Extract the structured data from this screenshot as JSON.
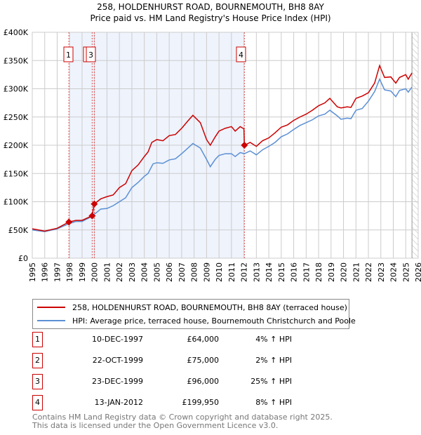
{
  "chart_data": {
    "type": "line",
    "title": "258, HOLDENHURST ROAD, BOURNEMOUTH, BH8 8AY",
    "subtitle": "Price paid vs. HM Land Registry's House Price Index (HPI)",
    "xlim": [
      1995,
      2026
    ],
    "ylim": [
      0,
      400000
    ],
    "yticks": [
      0,
      50000,
      100000,
      150000,
      200000,
      250000,
      300000,
      350000,
      400000
    ],
    "ytick_labels": [
      "£0",
      "£50K",
      "£100K",
      "£150K",
      "£200K",
      "£250K",
      "£300K",
      "£350K",
      "£400K"
    ],
    "xticks": [
      1995,
      1996,
      1997,
      1998,
      1999,
      2000,
      2001,
      2002,
      2003,
      2004,
      2005,
      2006,
      2007,
      2008,
      2009,
      2010,
      2011,
      2012,
      2013,
      2014,
      2015,
      2016,
      2017,
      2018,
      2019,
      2020,
      2021,
      2022,
      2023,
      2024,
      2025,
      2026
    ],
    "grid": true,
    "colors": {
      "property": "#cc0000",
      "hpi": "#5b8fd4",
      "shade": "#eef3fc"
    },
    "series": [
      {
        "name": "258, HOLDENHURST ROAD, BOURNEMOUTH, BH8 8AY (terraced house)",
        "points": [
          [
            1995,
            52000
          ],
          [
            1996,
            48000
          ],
          [
            1997,
            53000
          ],
          [
            1997.94,
            64000
          ],
          [
            1998.5,
            67000
          ],
          [
            1999,
            67000
          ],
          [
            1999.8,
            75000
          ],
          [
            1999.98,
            96000
          ],
          [
            2000.5,
            105000
          ],
          [
            2001,
            109000
          ],
          [
            2001.5,
            112000
          ],
          [
            2002,
            125000
          ],
          [
            2002.5,
            132000
          ],
          [
            2003,
            155000
          ],
          [
            2003.5,
            165000
          ],
          [
            2004,
            180000
          ],
          [
            2004.3,
            188000
          ],
          [
            2004.6,
            205000
          ],
          [
            2005,
            210000
          ],
          [
            2005.5,
            208000
          ],
          [
            2006,
            217000
          ],
          [
            2006.5,
            219000
          ],
          [
            2007,
            230000
          ],
          [
            2007.5,
            243000
          ],
          [
            2007.9,
            253000
          ],
          [
            2008.5,
            240000
          ],
          [
            2009,
            210000
          ],
          [
            2009.3,
            200000
          ],
          [
            2009.7,
            215000
          ],
          [
            2010,
            225000
          ],
          [
            2010.5,
            230000
          ],
          [
            2011,
            233000
          ],
          [
            2011.3,
            225000
          ],
          [
            2011.7,
            233000
          ],
          [
            2012.0,
            229000
          ],
          [
            2012.04,
            199950
          ],
          [
            2012.5,
            205000
          ],
          [
            2013,
            198000
          ],
          [
            2013.5,
            208000
          ],
          [
            2014,
            213000
          ],
          [
            2014.5,
            222000
          ],
          [
            2015,
            232000
          ],
          [
            2015.5,
            236000
          ],
          [
            2016,
            244000
          ],
          [
            2016.5,
            250000
          ],
          [
            2017,
            255000
          ],
          [
            2017.5,
            262000
          ],
          [
            2018,
            270000
          ],
          [
            2018.5,
            275000
          ],
          [
            2018.9,
            283000
          ],
          [
            2019.5,
            268000
          ],
          [
            2019.8,
            266000
          ],
          [
            2020.3,
            268000
          ],
          [
            2020.6,
            267000
          ],
          [
            2021,
            283000
          ],
          [
            2021.5,
            287000
          ],
          [
            2022,
            293000
          ],
          [
            2022.5,
            310000
          ],
          [
            2022.9,
            341000
          ],
          [
            2023.3,
            320000
          ],
          [
            2023.8,
            321000
          ],
          [
            2024.2,
            310000
          ],
          [
            2024.5,
            320000
          ],
          [
            2025,
            325000
          ],
          [
            2025.2,
            317000
          ],
          [
            2025.5,
            328000
          ]
        ]
      },
      {
        "name": "HPI: Average price, terraced house, Bournemouth Christchurch and Poole",
        "points": [
          [
            1995,
            50000
          ],
          [
            1996,
            47000
          ],
          [
            1997,
            52000
          ],
          [
            1997.94,
            61000
          ],
          [
            1998.5,
            65000
          ],
          [
            1999,
            65000
          ],
          [
            1999.8,
            74000
          ],
          [
            2000,
            78000
          ],
          [
            2000.5,
            87000
          ],
          [
            2001,
            88000
          ],
          [
            2001.5,
            93000
          ],
          [
            2002,
            100000
          ],
          [
            2002.5,
            107000
          ],
          [
            2003,
            125000
          ],
          [
            2003.5,
            134000
          ],
          [
            2004,
            145000
          ],
          [
            2004.3,
            150000
          ],
          [
            2004.7,
            167000
          ],
          [
            2005,
            169000
          ],
          [
            2005.5,
            168000
          ],
          [
            2006,
            174000
          ],
          [
            2006.5,
            176000
          ],
          [
            2007,
            185000
          ],
          [
            2007.5,
            195000
          ],
          [
            2007.9,
            203000
          ],
          [
            2008.5,
            195000
          ],
          [
            2009,
            175000
          ],
          [
            2009.3,
            162000
          ],
          [
            2009.7,
            175000
          ],
          [
            2010,
            182000
          ],
          [
            2010.5,
            185000
          ],
          [
            2011,
            185000
          ],
          [
            2011.3,
            180000
          ],
          [
            2011.7,
            187000
          ],
          [
            2012.04,
            185000
          ],
          [
            2012.5,
            190000
          ],
          [
            2013,
            183000
          ],
          [
            2013.5,
            192000
          ],
          [
            2014,
            198000
          ],
          [
            2014.5,
            205000
          ],
          [
            2015,
            215000
          ],
          [
            2015.5,
            220000
          ],
          [
            2016,
            228000
          ],
          [
            2016.5,
            235000
          ],
          [
            2017,
            240000
          ],
          [
            2017.5,
            245000
          ],
          [
            2018,
            252000
          ],
          [
            2018.5,
            255000
          ],
          [
            2018.9,
            262000
          ],
          [
            2019.5,
            252000
          ],
          [
            2019.8,
            246000
          ],
          [
            2020.3,
            248000
          ],
          [
            2020.6,
            247000
          ],
          [
            2021,
            262000
          ],
          [
            2021.5,
            265000
          ],
          [
            2022,
            278000
          ],
          [
            2022.5,
            295000
          ],
          [
            2022.9,
            317000
          ],
          [
            2023.3,
            298000
          ],
          [
            2023.8,
            296000
          ],
          [
            2024.2,
            286000
          ],
          [
            2024.5,
            297000
          ],
          [
            2025,
            300000
          ],
          [
            2025.2,
            294000
          ],
          [
            2025.5,
            303000
          ]
        ]
      }
    ],
    "sales": [
      {
        "id": "1",
        "x": 1997.94,
        "price": 64000,
        "date": "10-DEC-1997",
        "price_label": "£64,000",
        "hpi": "4% ↑ HPI"
      },
      {
        "id": "2",
        "x": 1999.81,
        "price": 75000,
        "date": "22-OCT-1999",
        "price_label": "£75,000",
        "hpi": "2% ↑ HPI"
      },
      {
        "id": "3",
        "x": 1999.98,
        "price": 96000,
        "date": "23-DEC-1999",
        "price_label": "£96,000",
        "hpi": "25% ↑ HPI"
      },
      {
        "id": "4",
        "x": 2012.04,
        "price": 199950,
        "date": "13-JAN-2012",
        "price_label": "£199,950",
        "hpi": "8% ↑ HPI"
      }
    ],
    "shaded_range": [
      1997.94,
      2012.04
    ],
    "forecast_start": 2025.5
  },
  "legend": {
    "property": "258, HOLDENHURST ROAD, BOURNEMOUTH, BH8 8AY (terraced house)",
    "hpi": "HPI: Average price, terraced house, Bournemouth Christchurch and Poole"
  },
  "footer": {
    "line1": "Contains HM Land Registry data © Crown copyright and database right 2025.",
    "line2": "This data is licensed under the Open Government Licence v3.0."
  }
}
